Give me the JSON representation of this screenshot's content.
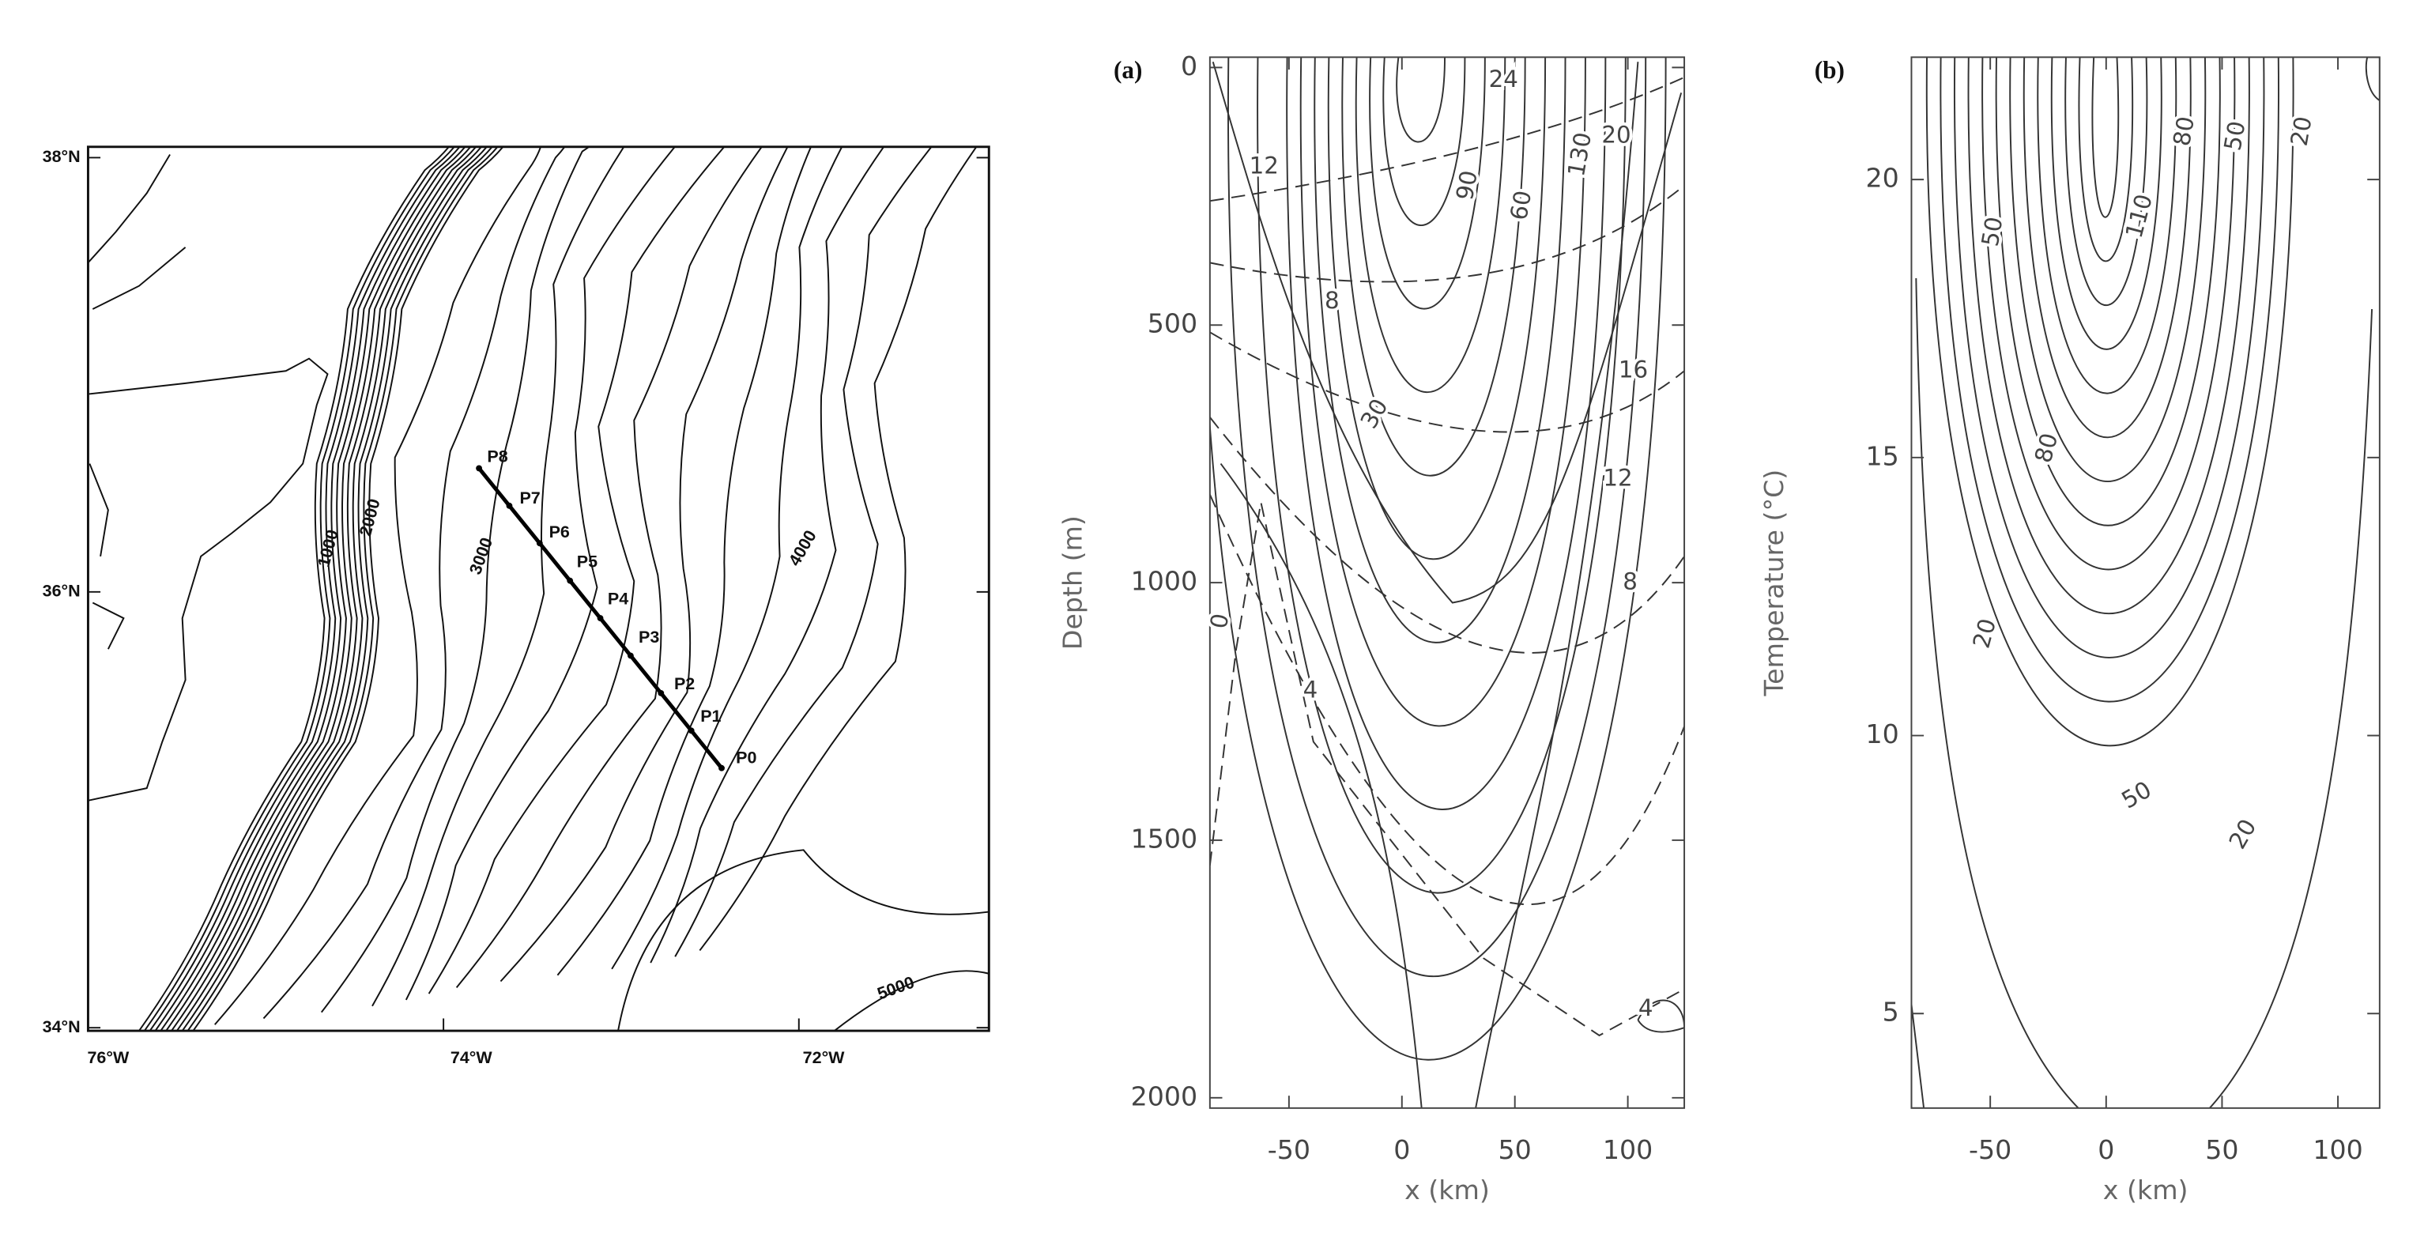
{
  "map": {
    "lat_labels": [
      "38°N",
      "36°N",
      "34°N"
    ],
    "lon_labels": [
      "76°W",
      "74°W",
      "72°W"
    ],
    "stations": [
      "P8",
      "P7",
      "P6",
      "P5",
      "P4",
      "P3",
      "P2",
      "P1",
      "P0"
    ],
    "contour_labels": [
      "1000",
      "2000",
      "3000",
      "4000",
      "5000"
    ]
  },
  "chart_data": [
    {
      "type": "contour",
      "panel_label": "(a)",
      "x_label": "x (km)",
      "y_label": "Depth (m)",
      "xlim": [
        -85,
        125
      ],
      "ylim": [
        -20,
        2020
      ],
      "y_inverted": true,
      "xticks": [
        -50,
        0,
        50,
        100
      ],
      "yticks": [
        0,
        500,
        1000,
        1500,
        2000
      ],
      "contour_labels": [
        24,
        20,
        130,
        12,
        90,
        60,
        8,
        16,
        30,
        12,
        8,
        0,
        4,
        4
      ]
    },
    {
      "type": "contour",
      "panel_label": "(b)",
      "x_label": "x (km)",
      "y_label": "Temperature (°C)",
      "xlim": [
        -84,
        118
      ],
      "ylim": [
        3.3,
        22.2
      ],
      "y_inverted": false,
      "xticks": [
        -50,
        0,
        50,
        100
      ],
      "yticks": [
        5,
        10,
        15,
        20
      ],
      "contour_labels": [
        80,
        50,
        20,
        110,
        50,
        80,
        20,
        50,
        20
      ]
    }
  ]
}
